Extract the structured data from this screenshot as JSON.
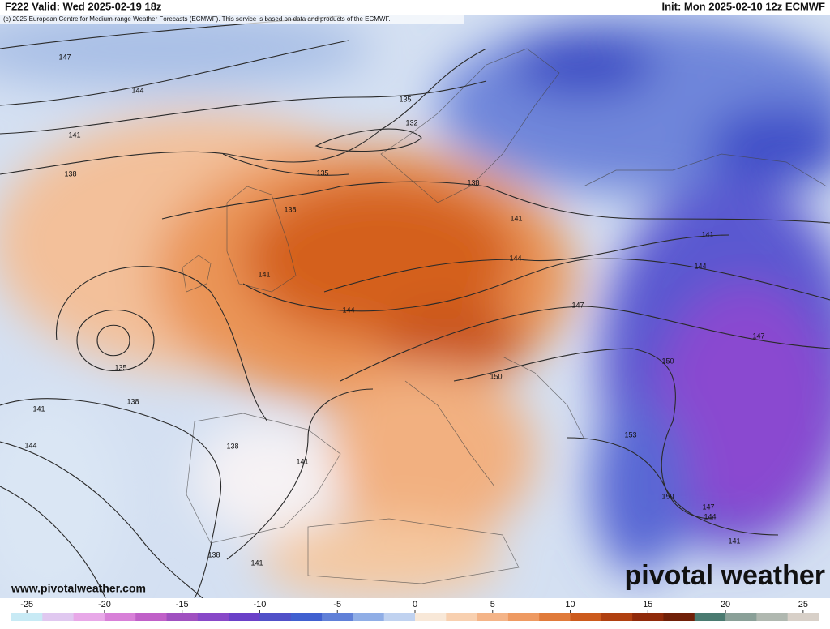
{
  "header": {
    "valid": "F222 Valid: Wed 2025-02-19 18z",
    "init": "Init: Mon 2025-02-10 12z ECMWF",
    "copyright": "(c) 2025 European Centre for Medium-range Weather Forecasts (ECMWF). This service is based on data and products of the ECMWF."
  },
  "contour_labels": [
    147,
    144,
    141,
    138,
    135,
    132,
    135,
    138,
    138,
    141,
    141,
    144,
    144,
    141,
    144,
    147,
    147,
    135,
    150,
    138,
    141,
    150,
    144,
    138,
    141,
    153,
    150,
    147,
    144,
    141,
    138,
    141
  ],
  "footer": {
    "url": "www.pivotalweather.com",
    "logo": "pivotal weather"
  },
  "colorbar": {
    "range": [
      -26,
      26
    ],
    "ticks": [
      -25,
      -20,
      -15,
      -10,
      -5,
      0,
      5,
      10,
      15,
      20,
      25
    ],
    "colors": [
      "#c8eaf5",
      "#e0c8f0",
      "#e8a8e8",
      "#d880d8",
      "#c060c8",
      "#a050c0",
      "#8848c8",
      "#6a40c8",
      "#5050c8",
      "#4060d0",
      "#6080d8",
      "#90aee6",
      "#c0d2f0",
      "#f8e8d8",
      "#f8d0b0",
      "#f4b488",
      "#ee9a62",
      "#e07a3a",
      "#cc5a1c",
      "#b04010",
      "#902a0a",
      "#702008",
      "#4a7a70",
      "#8aa098",
      "#b0b8b0",
      "#d8d0c8"
    ]
  }
}
